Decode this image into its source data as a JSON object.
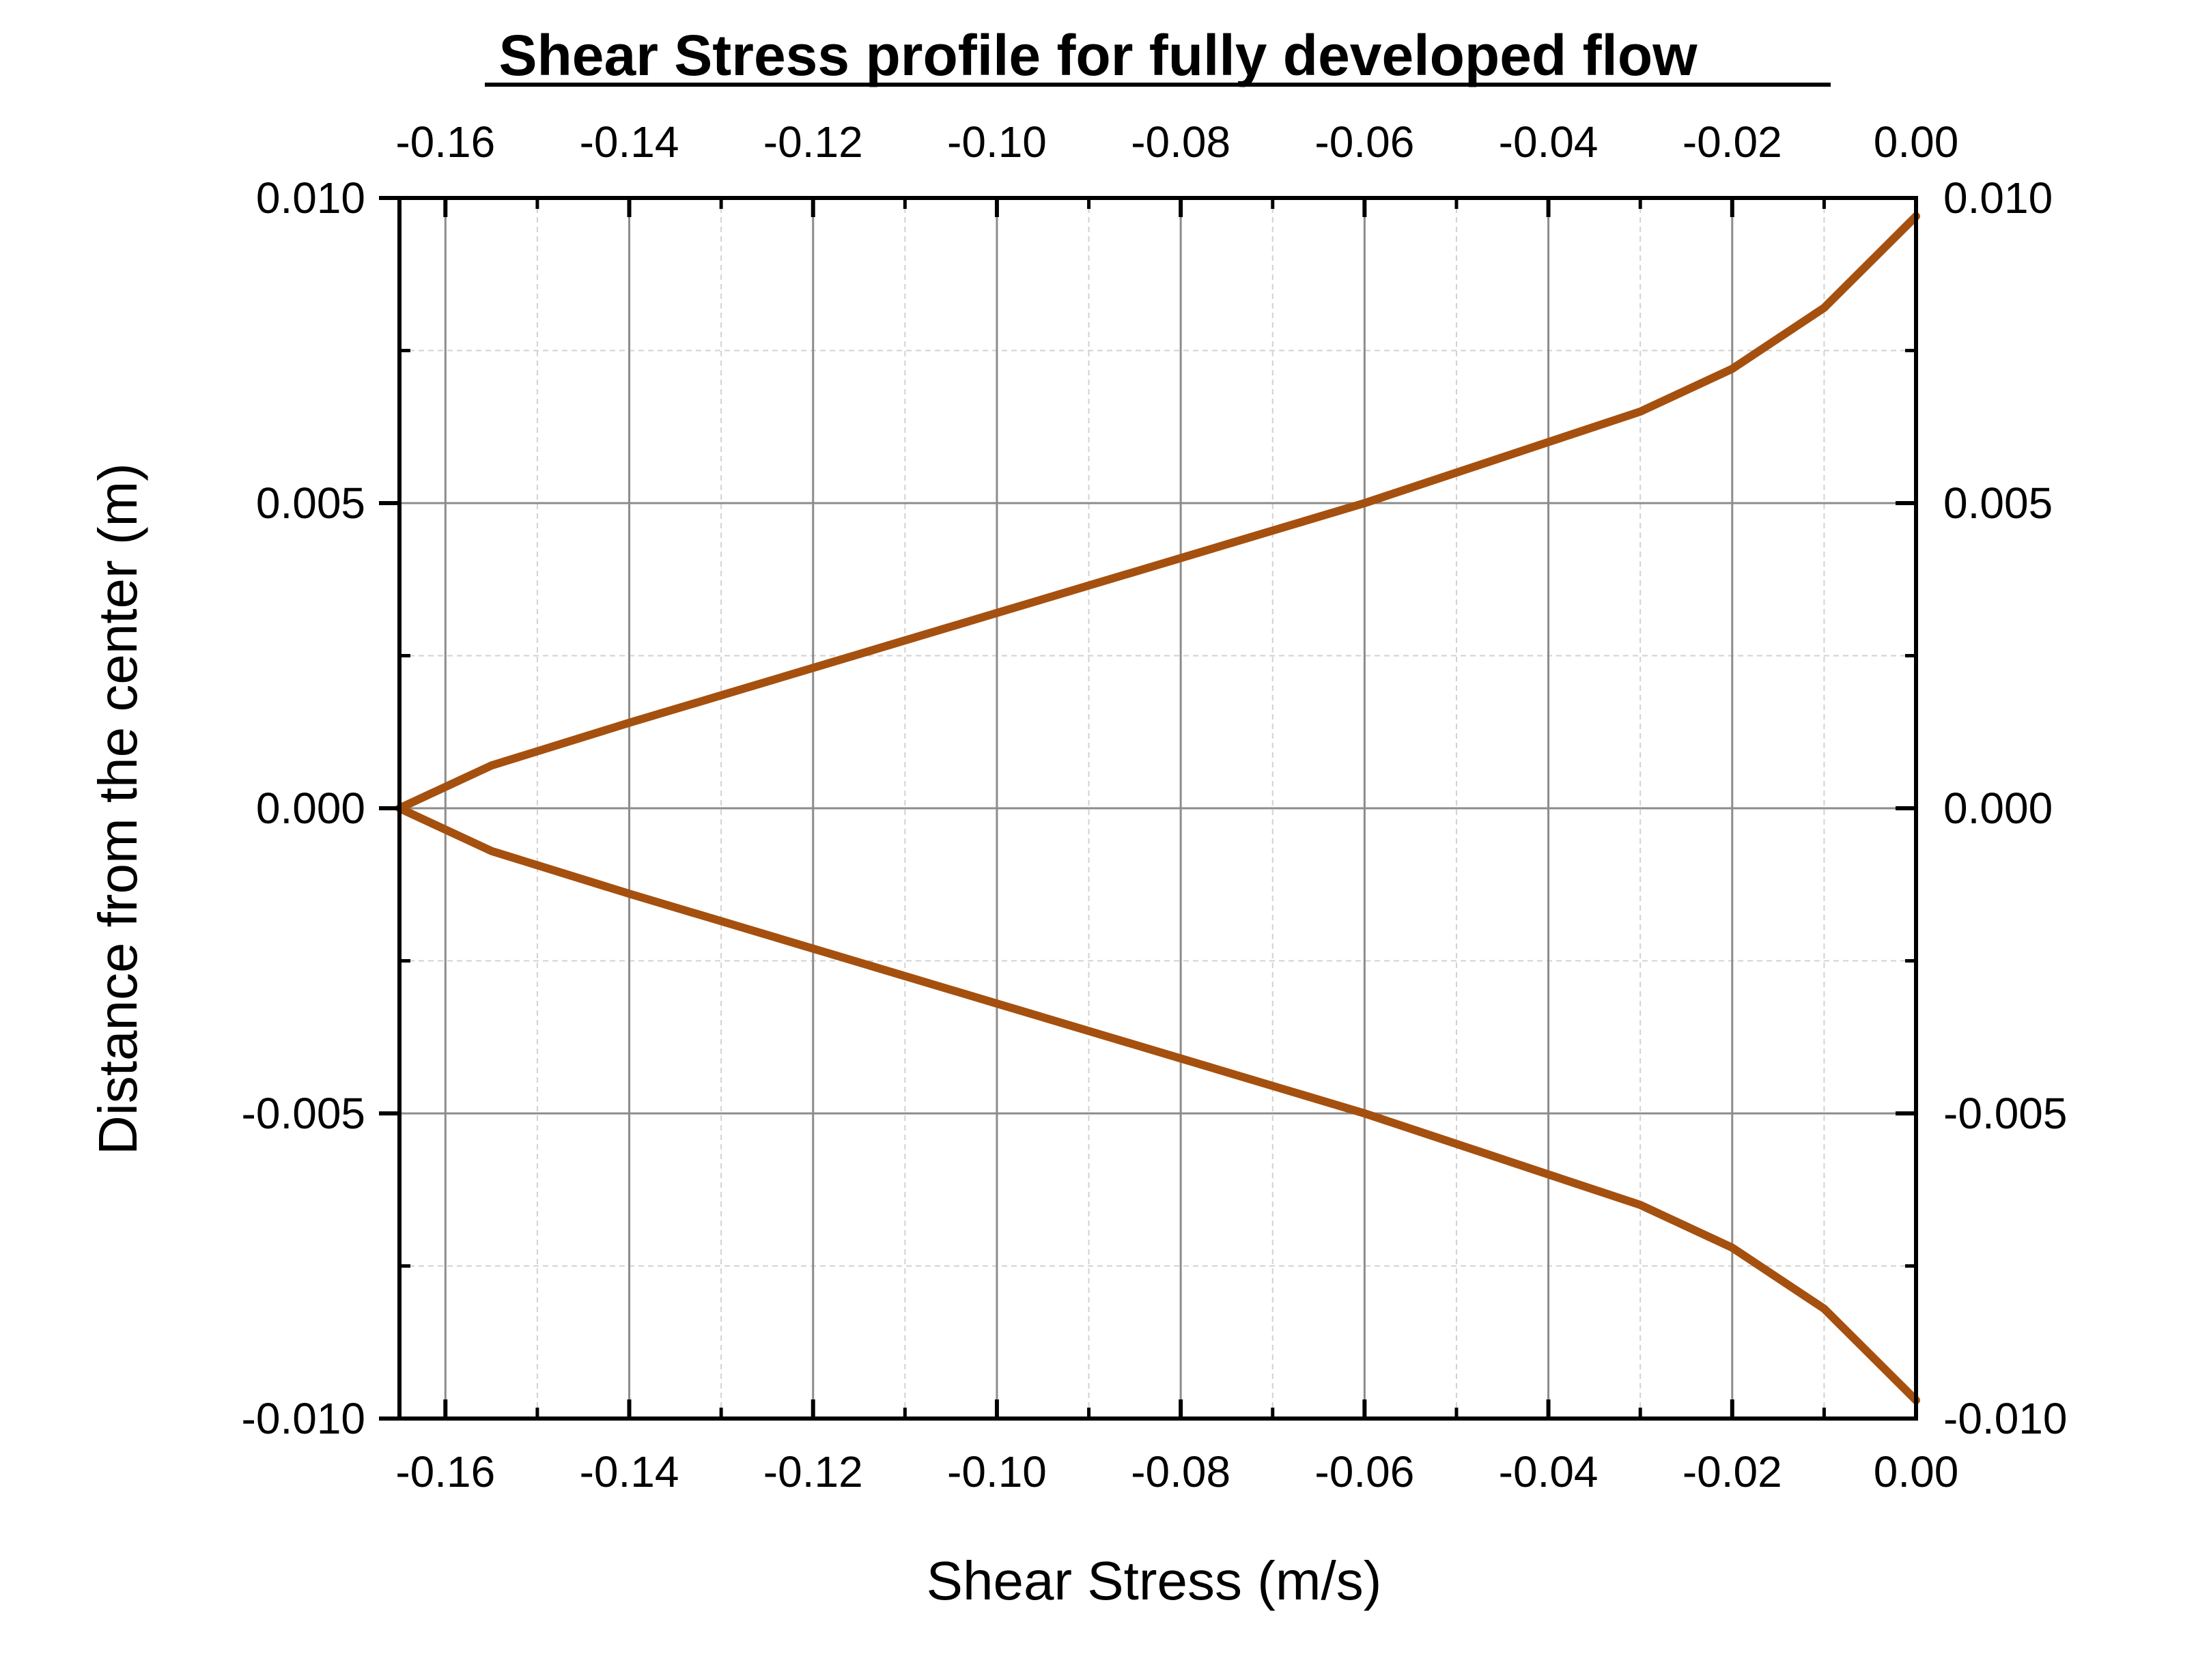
{
  "chart_data": {
    "type": "line",
    "title": "Shear Stress profile for fully developed flow",
    "xlabel": "Shear Stress (m/s)",
    "ylabel": "Distance from the center (m)",
    "xlim": [
      -0.165,
      0.0
    ],
    "ylim": [
      -0.01,
      0.01
    ],
    "x_ticks": [
      -0.16,
      -0.14,
      -0.12,
      -0.1,
      -0.08,
      -0.06,
      -0.04,
      -0.02,
      0.0
    ],
    "x_tick_labels": [
      "-0.16",
      "-0.14",
      "-0.12",
      "-0.10",
      "-0.08",
      "-0.06",
      "-0.04",
      "-0.02",
      "0.00"
    ],
    "y_ticks": [
      0.01,
      0.005,
      0.0,
      -0.005,
      -0.01
    ],
    "y_tick_labels": [
      "0.010",
      "0.005",
      "0.000",
      "-0.005",
      "-0.010"
    ],
    "grid": true,
    "series": [
      {
        "color": "#A5500F",
        "points": [
          [
            0.0,
            0.0097
          ],
          [
            -0.01,
            0.0082
          ],
          [
            -0.02,
            0.0072
          ],
          [
            -0.03,
            0.0065
          ],
          [
            -0.04,
            0.006
          ],
          [
            -0.06,
            0.005
          ],
          [
            -0.08,
            0.0041
          ],
          [
            -0.1,
            0.0032
          ],
          [
            -0.12,
            0.0023
          ],
          [
            -0.14,
            0.0014
          ],
          [
            -0.155,
            0.0007
          ],
          [
            -0.165,
            0.0
          ],
          [
            -0.155,
            -0.0007
          ],
          [
            -0.14,
            -0.0014
          ],
          [
            -0.12,
            -0.0023
          ],
          [
            -0.1,
            -0.0032
          ],
          [
            -0.08,
            -0.0041
          ],
          [
            -0.06,
            -0.005
          ],
          [
            -0.04,
            -0.006
          ],
          [
            -0.03,
            -0.0065
          ],
          [
            -0.02,
            -0.0072
          ],
          [
            -0.01,
            -0.0082
          ],
          [
            0.0,
            -0.0097
          ]
        ]
      }
    ]
  }
}
